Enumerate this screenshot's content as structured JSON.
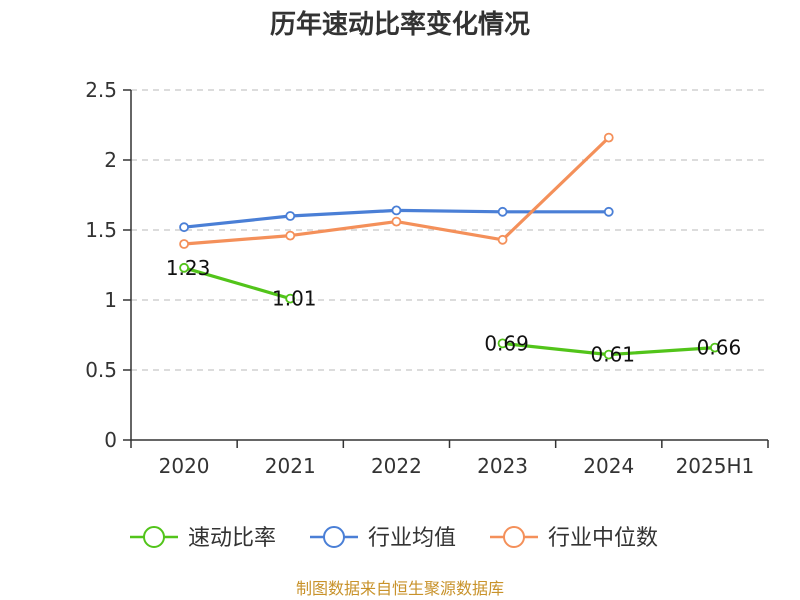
{
  "chart_data": {
    "type": "line",
    "title": "历年速动比率变化情况",
    "categories": [
      "2020",
      "2021",
      "2022",
      "2023",
      "2024",
      "2025H1"
    ],
    "ylim": [
      0,
      2.5
    ],
    "yticks": [
      "0",
      "0.5",
      "1",
      "1.5",
      "2",
      "2.5"
    ],
    "grid": true,
    "legend_position": "bottom",
    "series": [
      {
        "name": "速动比率",
        "color": "#52c41a",
        "values": [
          1.23,
          1.01,
          null,
          0.69,
          0.61,
          0.66
        ],
        "labels": [
          "1.23",
          "1.01",
          "",
          "0.69",
          "0.61",
          "0.66"
        ]
      },
      {
        "name": "行业均值",
        "color": "#4a7fd6",
        "values": [
          1.52,
          1.6,
          1.64,
          1.63,
          1.63,
          null
        ],
        "labels": []
      },
      {
        "name": "行业中位数",
        "color": "#f4905a",
        "values": [
          1.4,
          1.46,
          1.56,
          1.43,
          2.16,
          null
        ],
        "labels": []
      }
    ]
  },
  "footer": {
    "source": "制图数据来自恒生聚源数据库"
  }
}
